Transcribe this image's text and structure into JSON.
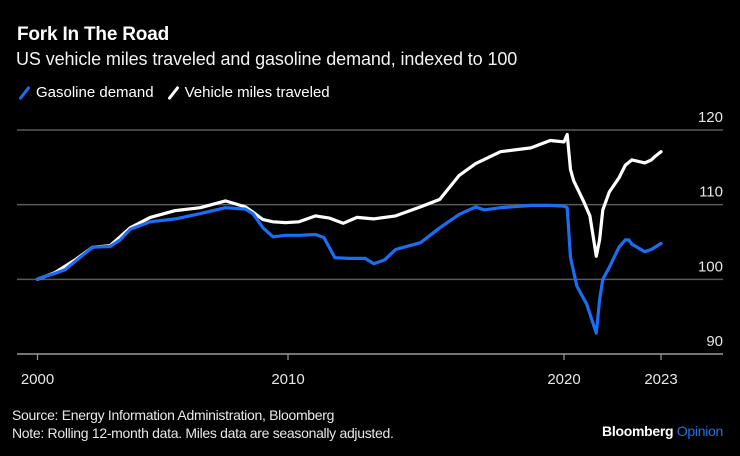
{
  "header": {
    "title": "Fork In The Road",
    "subtitle": "US vehicle miles traveled and gasoline demand, indexed to 100"
  },
  "legend": [
    {
      "label": "Gasoline demand",
      "color": "#1a6ef5"
    },
    {
      "label": "Vehicle miles traveled",
      "color": "#ffffff"
    }
  ],
  "footer": {
    "source": "Source: Energy Information Administration, Bloomberg",
    "note": "Note: Rolling 12-month data. Miles data are seasonally adjusted."
  },
  "brand": {
    "name": "Bloomberg",
    "section": "Opinion",
    "section_color": "#1a73e8"
  },
  "chart_data": {
    "type": "line",
    "title": "Fork In The Road",
    "subtitle": "US vehicle miles traveled and gasoline demand, indexed to 100",
    "xlabel": "",
    "ylabel": "",
    "x_ticks": [
      "2000",
      "2010",
      "2020",
      "2023"
    ],
    "x_tick_values": [
      2000,
      2010,
      2020,
      2023
    ],
    "y_ticks": [
      "90",
      "100",
      "110",
      "120"
    ],
    "y_tick_values": [
      90,
      100,
      110,
      120
    ],
    "ylim": [
      90,
      120
    ],
    "xlim": [
      2000,
      2023
    ],
    "y_axis_side": "right",
    "grid": true,
    "legend_position": "top-left",
    "series": [
      {
        "name": "Gasoline demand",
        "color": "#1a6ef5",
        "points": [
          [
            2000.0,
            100.0
          ],
          [
            2000.3,
            100.4
          ],
          [
            2000.7,
            100.8
          ],
          [
            2001.1,
            101.3
          ],
          [
            2001.5,
            102.4
          ],
          [
            2001.9,
            103.5
          ],
          [
            2002.2,
            104.3
          ],
          [
            2002.9,
            104.4
          ],
          [
            2003.3,
            105.3
          ],
          [
            2003.7,
            106.7
          ],
          [
            2004.5,
            107.7
          ],
          [
            2005.5,
            108.1
          ],
          [
            2006.5,
            108.8
          ],
          [
            2007.5,
            109.6
          ],
          [
            2008.3,
            109.4
          ],
          [
            2008.6,
            108.8
          ],
          [
            2009.0,
            106.9
          ],
          [
            2009.4,
            105.7
          ],
          [
            2009.9,
            105.9
          ],
          [
            2010.4,
            105.9
          ],
          [
            2011.0,
            106.0
          ],
          [
            2011.3,
            105.6
          ],
          [
            2011.7,
            102.9
          ],
          [
            2012.2,
            102.8
          ],
          [
            2012.8,
            102.8
          ],
          [
            2013.1,
            102.1
          ],
          [
            2013.5,
            102.6
          ],
          [
            2013.9,
            104.0
          ],
          [
            2014.4,
            104.5
          ],
          [
            2014.8,
            104.9
          ],
          [
            2015.5,
            106.9
          ],
          [
            2016.2,
            108.7
          ],
          [
            2016.8,
            109.7
          ],
          [
            2017.1,
            109.3
          ],
          [
            2017.7,
            109.6
          ],
          [
            2018.8,
            109.9
          ],
          [
            2019.5,
            109.9
          ],
          [
            2020.0,
            109.8
          ],
          [
            2020.1,
            109.6
          ],
          [
            2020.2,
            102.9
          ],
          [
            2020.4,
            99.1
          ],
          [
            2020.7,
            96.7
          ],
          [
            2021.0,
            92.8
          ],
          [
            2021.1,
            97.3
          ],
          [
            2021.2,
            100.0
          ],
          [
            2021.4,
            101.6
          ],
          [
            2021.7,
            104.3
          ],
          [
            2021.9,
            105.3
          ],
          [
            2022.0,
            105.3
          ],
          [
            2022.1,
            104.7
          ],
          [
            2022.5,
            103.7
          ],
          [
            2022.7,
            104.0
          ],
          [
            2023.0,
            104.8
          ]
        ]
      },
      {
        "name": "Vehicle miles traveled",
        "color": "#ffffff",
        "points": [
          [
            2000.0,
            100.0
          ],
          [
            2000.7,
            100.9
          ],
          [
            2001.5,
            102.6
          ],
          [
            2002.2,
            104.3
          ],
          [
            2002.9,
            104.5
          ],
          [
            2003.7,
            106.9
          ],
          [
            2004.5,
            108.3
          ],
          [
            2005.5,
            109.2
          ],
          [
            2006.5,
            109.6
          ],
          [
            2007.5,
            110.5
          ],
          [
            2008.3,
            109.7
          ],
          [
            2008.6,
            109.0
          ],
          [
            2009.0,
            108.0
          ],
          [
            2009.4,
            107.7
          ],
          [
            2009.9,
            107.6
          ],
          [
            2010.4,
            107.7
          ],
          [
            2011.0,
            108.5
          ],
          [
            2011.5,
            108.2
          ],
          [
            2012.0,
            107.5
          ],
          [
            2012.5,
            108.3
          ],
          [
            2013.1,
            108.1
          ],
          [
            2013.9,
            108.5
          ],
          [
            2014.8,
            109.7
          ],
          [
            2015.5,
            110.7
          ],
          [
            2016.2,
            113.9
          ],
          [
            2016.8,
            115.5
          ],
          [
            2017.7,
            117.1
          ],
          [
            2018.8,
            117.6
          ],
          [
            2019.5,
            118.6
          ],
          [
            2020.0,
            118.4
          ],
          [
            2020.1,
            119.4
          ],
          [
            2020.2,
            114.7
          ],
          [
            2020.3,
            113.2
          ],
          [
            2020.6,
            110.5
          ],
          [
            2020.8,
            108.5
          ],
          [
            2021.0,
            103.1
          ],
          [
            2021.1,
            105.3
          ],
          [
            2021.2,
            109.3
          ],
          [
            2021.4,
            111.7
          ],
          [
            2021.7,
            113.6
          ],
          [
            2021.9,
            115.3
          ],
          [
            2022.1,
            116.0
          ],
          [
            2022.5,
            115.6
          ],
          [
            2022.7,
            116.0
          ],
          [
            2022.8,
            116.4
          ],
          [
            2023.0,
            117.1
          ]
        ]
      }
    ]
  }
}
